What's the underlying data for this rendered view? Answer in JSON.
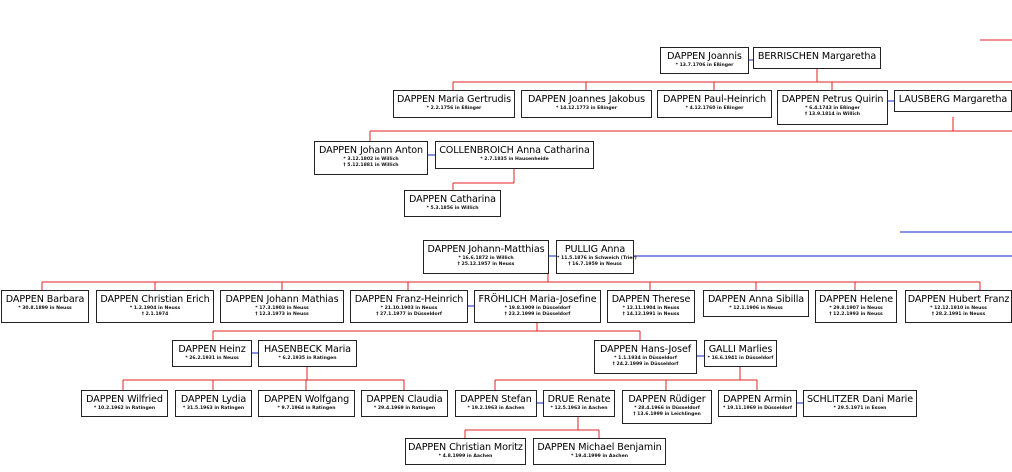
{
  "nodes": [
    {
      "name": "DAPPEN Joannis",
      "details": [
        "* 13.7.1706 in Eßinger"
      ]
    },
    {
      "name": "BERRISCHEN Margaretha",
      "details": []
    },
    {
      "name": "DAPPEN Maria Gertrudis",
      "details": [
        "* 2.2.1756 in Eßinger"
      ]
    },
    {
      "name": "DAPPEN Joannes Jakobus",
      "details": [
        "* 14.12.1773 in Eßinger"
      ]
    },
    {
      "name": "DAPPEN Paul-Heinrich",
      "details": [
        "* 4.12.1760 in Eßinger"
      ]
    },
    {
      "name": "DAPPEN Petrus Quirin",
      "details": [
        "* 6.4.1743 in Eßinger",
        "† 13.9.1814 in Willich"
      ]
    },
    {
      "name": "LAUSBERG Margaretha",
      "details": []
    },
    {
      "name": "DAPPEN Johann Anton",
      "details": [
        "* 3.12.1802 in Willich",
        "† 5.12.1881 in Willich"
      ]
    },
    {
      "name": "COLLENBROICH Anna Catharina",
      "details": [
        "* 2.7.1835 in Hausenheide"
      ]
    },
    {
      "name": "DAPPEN Catharina",
      "details": [
        "* 5.3.1856 in Willich"
      ]
    },
    {
      "name": "DAPPEN Johann-Matthias",
      "details": [
        "* 16.6.1872 in Willich",
        "† 25.12.1957 in Neuss"
      ]
    },
    {
      "name": "PULLIG Anna",
      "details": [
        "* 11.5.1876 in Schweich (Trier)",
        "† 16.7.1959 in Neuss"
      ]
    },
    {
      "name": "DAPPEN Barbara",
      "details": [
        "* 30.8.1899 in Neuss"
      ]
    },
    {
      "name": "DAPPEN Christian Erich",
      "details": [
        "* 1.2.1904 in Neuss",
        "† 2.1.1974"
      ]
    },
    {
      "name": "DAPPEN Johann Mathias",
      "details": [
        "* 17.3.1903 in Neuss",
        "† 12.3.1973 in Neuss"
      ]
    },
    {
      "name": "DAPPEN Franz-Heinrich",
      "details": [
        "* 21.10.1903 in Neuss",
        "† 27.1.1977 in Düsseldorf"
      ]
    },
    {
      "name": "FRÖHLICH Maria-Josefine",
      "details": [
        "* 19.8.1909 in Düsseldorf",
        "† 23.2.1999 in Düsseldorf"
      ]
    },
    {
      "name": "DAPPEN Therese",
      "details": [
        "* 12.11.1904 in Neuss",
        "† 14.12.1991 in Neuss"
      ]
    },
    {
      "name": "DAPPEN Anna Sibilla",
      "details": [
        "* 12.1.1906 in Neuss"
      ]
    },
    {
      "name": "DAPPEN Helene",
      "details": [
        "* 29.8.1907 in Neuss",
        "† 12.2.1993 in Neuss"
      ]
    },
    {
      "name": "DAPPEN Hubert Franz",
      "details": [
        "* 12.12.1910 in Neuss",
        "† 28.2.1991 in Neuss"
      ]
    },
    {
      "name": "DAPPEN Heinz",
      "details": [
        "* 26.2.1931 in Neuss"
      ]
    },
    {
      "name": "HASENBECK Maria",
      "details": [
        "* 6.2.1935 in Ratingen"
      ]
    },
    {
      "name": "DAPPEN Hans-Josef",
      "details": [
        "* 1.1.1934 in Düsseldorf",
        "† 24.2.1999 in Düsseldorf"
      ]
    },
    {
      "name": "GALLI Marlies",
      "details": [
        "* 16.6.1941 in Düsseldorf"
      ]
    },
    {
      "name": "DAPPEN Wilfried",
      "details": [
        "* 10.2.1962 in Ratingen"
      ]
    },
    {
      "name": "DAPPEN Lydia",
      "details": [
        "* 31.5.1963 in Ratingen"
      ]
    },
    {
      "name": "DAPPEN Wolfgang",
      "details": [
        "* 9.7.1964 in Ratingen"
      ]
    },
    {
      "name": "DAPPEN Claudia",
      "details": [
        "* 29.4.1969 in Ratingen"
      ]
    },
    {
      "name": "DAPPEN Stefan",
      "details": [
        "* 19.2.1963 in Aachen"
      ]
    },
    {
      "name": "DRUE Renate",
      "details": [
        "* 12.5.1963 in Aachen"
      ]
    },
    {
      "name": "DAPPEN Rüdiger",
      "details": [
        "* 28.4.1966 in Düsseldorf",
        "† 13.6.1999 in Leichlingen"
      ]
    },
    {
      "name": "DAPPEN Armin",
      "details": [
        "* 19.11.1969 in Düsseldorf"
      ]
    },
    {
      "name": "SCHLITZER Dani Marie",
      "details": [
        "* 29.5.1971 in Essen"
      ]
    },
    {
      "name": "DAPPEN Christian Moritz",
      "details": [
        "* 4.8.1999 in Aachen"
      ]
    },
    {
      "name": "DAPPEN Michael Benjamin",
      "details": [
        "* 19.4.1999 in Aachen"
      ]
    }
  ]
}
